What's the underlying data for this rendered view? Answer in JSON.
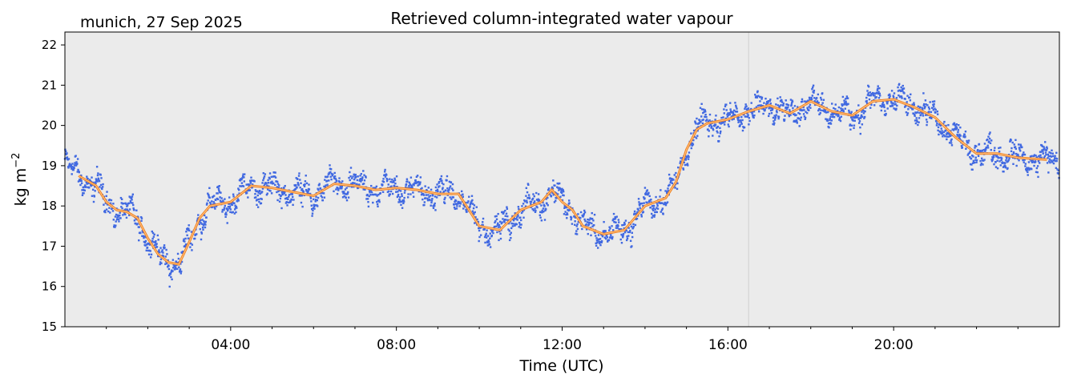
{
  "chart_data": {
    "type": "scatter",
    "title": "Retrieved column-integrated water vapour",
    "subtitle": "munich, 27 Sep 2025",
    "xlabel": "Time (UTC)",
    "ylabel": "kg m",
    "ylabel_superscript": "−2",
    "xlim_hours": [
      0,
      24
    ],
    "ylim": [
      15,
      22.32
    ],
    "yticks": [
      15,
      16,
      17,
      18,
      19,
      20,
      21,
      22
    ],
    "xticks": [
      {
        "hour": 4,
        "label": "04:00"
      },
      {
        "hour": 8,
        "label": "08:00"
      },
      {
        "hour": 12,
        "label": "12:00"
      },
      {
        "hour": 16,
        "label": "16:00"
      },
      {
        "hour": 20,
        "label": "20:00"
      }
    ],
    "vertical_marker_hour": 16.5,
    "grid": false,
    "background_color": "#ebebeb",
    "scatter_color": "#4169e1",
    "smooth_color": "#f08020",
    "scatter_spread": 0.3,
    "smoothed_series": {
      "name": "smoothed",
      "x": [
        0.33,
        0.5,
        0.75,
        1.0,
        1.25,
        1.5,
        1.75,
        2.0,
        2.25,
        2.5,
        2.75,
        3.0,
        3.25,
        3.5,
        4.0,
        4.5,
        5.0,
        5.5,
        6.0,
        6.5,
        7.0,
        7.5,
        8.0,
        8.5,
        9.0,
        9.5,
        9.75,
        10.0,
        10.5,
        11.0,
        11.5,
        11.75,
        12.0,
        12.25,
        12.5,
        13.0,
        13.5,
        14.0,
        14.5,
        14.75,
        15.0,
        15.25,
        15.5,
        16.0,
        16.5,
        17.0,
        17.5,
        18.0,
        18.5,
        19.0,
        19.5,
        20.0,
        20.5,
        21.0,
        21.5,
        22.0,
        22.5,
        23.0,
        23.7
      ],
      "y": [
        18.75,
        18.65,
        18.5,
        18.1,
        17.9,
        17.85,
        17.7,
        17.2,
        16.8,
        16.6,
        16.55,
        17.1,
        17.7,
        18.0,
        18.1,
        18.5,
        18.45,
        18.35,
        18.25,
        18.55,
        18.5,
        18.4,
        18.45,
        18.4,
        18.3,
        18.3,
        17.9,
        17.5,
        17.4,
        17.9,
        18.1,
        18.4,
        18.1,
        17.9,
        17.5,
        17.3,
        17.4,
        18.0,
        18.2,
        18.6,
        19.4,
        19.9,
        20.05,
        20.15,
        20.35,
        20.5,
        20.3,
        20.6,
        20.35,
        20.25,
        20.6,
        20.65,
        20.45,
        20.2,
        19.7,
        19.3,
        19.3,
        19.2,
        19.15
      ]
    }
  }
}
